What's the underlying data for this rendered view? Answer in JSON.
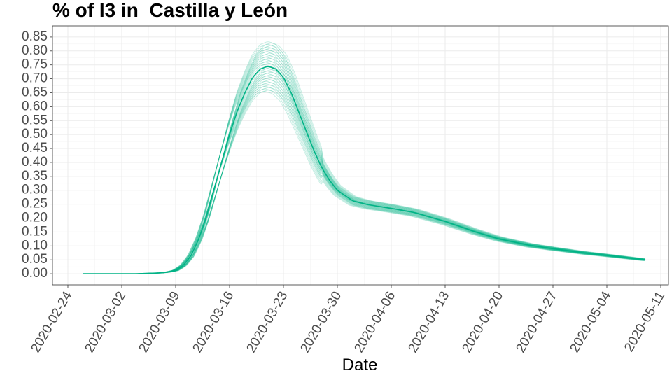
{
  "chart_data": {
    "type": "line",
    "title": "% of I3 in  Castilla y León",
    "xlabel": "Date",
    "ylabel": "",
    "x_start": "2020-02-26",
    "x_end": "2020-05-09",
    "xlim": [
      "2020-02-22",
      "2020-05-12"
    ],
    "ylim": [
      -0.04,
      0.89
    ],
    "x_ticks": [
      "2020-02-24",
      "2020-03-02",
      "2020-03-09",
      "2020-03-16",
      "2020-03-23",
      "2020-03-30",
      "2020-04-06",
      "2020-04-13",
      "2020-04-20",
      "2020-04-27",
      "2020-05-04",
      "2020-05-11"
    ],
    "y_ticks": [
      "0.00",
      "0.05",
      "0.10",
      "0.15",
      "0.20",
      "0.25",
      "0.30",
      "0.35",
      "0.40",
      "0.45",
      "0.50",
      "0.55",
      "0.60",
      "0.65",
      "0.70",
      "0.75",
      "0.80",
      "0.85"
    ],
    "grid": true,
    "color": "#00b386",
    "mean_series": {
      "points": [
        [
          "2020-02-26",
          0.0
        ],
        [
          "2020-03-01",
          0.0
        ],
        [
          "2020-03-04",
          0.0
        ],
        [
          "2020-03-06",
          0.002
        ],
        [
          "2020-03-07",
          0.003
        ],
        [
          "2020-03-08",
          0.006
        ],
        [
          "2020-03-09",
          0.012
        ],
        [
          "2020-03-10",
          0.03
        ],
        [
          "2020-03-11",
          0.065
        ],
        [
          "2020-03-12",
          0.125
        ],
        [
          "2020-03-13",
          0.205
        ],
        [
          "2020-03-14",
          0.305
        ],
        [
          "2020-03-15",
          0.405
        ],
        [
          "2020-03-16",
          0.5
        ],
        [
          "2020-03-17",
          0.585
        ],
        [
          "2020-03-18",
          0.65
        ],
        [
          "2020-03-19",
          0.705
        ],
        [
          "2020-03-20",
          0.735
        ],
        [
          "2020-03-21",
          0.745
        ],
        [
          "2020-03-22",
          0.735
        ],
        [
          "2020-03-23",
          0.705
        ],
        [
          "2020-03-24",
          0.65
        ],
        [
          "2020-03-25",
          0.58
        ],
        [
          "2020-03-26",
          0.51
        ],
        [
          "2020-03-27",
          0.44
        ],
        [
          "2020-03-28",
          0.38
        ],
        [
          "2020-03-29",
          0.335
        ],
        [
          "2020-03-30",
          0.3
        ],
        [
          "2020-04-01",
          0.262
        ],
        [
          "2020-04-03",
          0.248
        ],
        [
          "2020-04-06",
          0.235
        ],
        [
          "2020-04-09",
          0.22
        ],
        [
          "2020-04-13",
          0.188
        ],
        [
          "2020-04-17",
          0.15
        ],
        [
          "2020-04-20",
          0.125
        ],
        [
          "2020-04-24",
          0.102
        ],
        [
          "2020-04-27",
          0.09
        ],
        [
          "2020-05-01",
          0.075
        ],
        [
          "2020-05-04",
          0.066
        ],
        [
          "2020-05-09",
          0.05
        ]
      ]
    }
  }
}
